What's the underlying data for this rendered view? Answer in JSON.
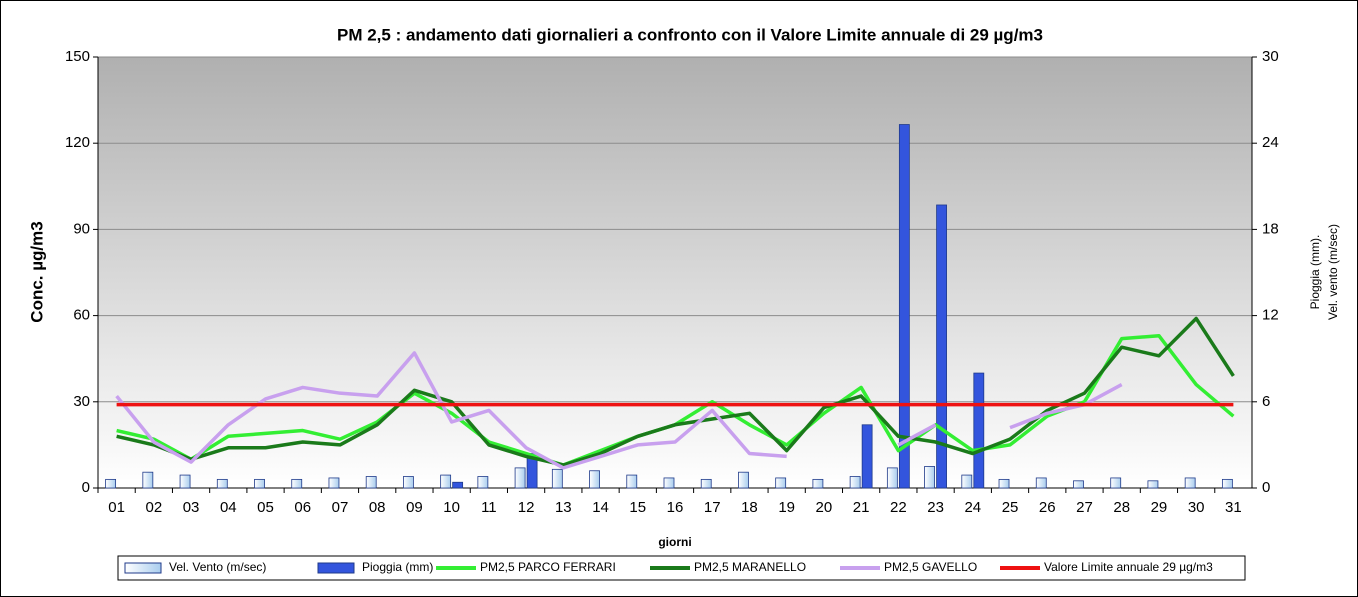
{
  "chart_data": {
    "type": "combo",
    "title": "PM 2,5 : andamento  dati giornalieri  a confronto con il Valore Limite annuale   di  29 µg/m3",
    "y_label": "Conc. µg/m3",
    "y2_label": [
      "Pioggia (mm).",
      "Vel. vento (m/sec)"
    ],
    "x_label": "giorni",
    "categories": [
      "01",
      "02",
      "03",
      "04",
      "05",
      "06",
      "07",
      "08",
      "09",
      "10",
      "11",
      "12",
      "13",
      "14",
      "15",
      "16",
      "17",
      "18",
      "19",
      "20",
      "21",
      "22",
      "23",
      "24",
      "25",
      "26",
      "27",
      "28",
      "29",
      "30",
      "31"
    ],
    "ylim": [
      0,
      150
    ],
    "yticks": [
      0,
      30,
      60,
      90,
      120,
      150
    ],
    "y2lim": [
      0,
      30
    ],
    "y2ticks": [
      0,
      6,
      12,
      18,
      24,
      30
    ],
    "grid": true,
    "legend": "bottom",
    "series": [
      {
        "name": "Vel. Vento (m/sec)",
        "type": "bar",
        "axis": "y2",
        "color": "#cfe6f7",
        "values": [
          0.6,
          1.1,
          0.9,
          0.6,
          0.6,
          0.6,
          0.7,
          0.8,
          0.8,
          0.9,
          0.8,
          1.4,
          1.3,
          1.2,
          0.9,
          0.7,
          0.6,
          1.1,
          0.7,
          0.6,
          0.8,
          1.4,
          1.5,
          0.9,
          0.6,
          0.7,
          0.5,
          0.7,
          0.5,
          0.7,
          0.6
        ]
      },
      {
        "name": "Pioggia (mm)",
        "type": "bar",
        "axis": "y2",
        "color": "#3355dd",
        "values": [
          0,
          0,
          0,
          0,
          0,
          0,
          0,
          0,
          0,
          0.4,
          0,
          2.4,
          0,
          0,
          0,
          0,
          0,
          0,
          0,
          0,
          4.4,
          25.3,
          19.7,
          8.0,
          0,
          0,
          0,
          0,
          0,
          0,
          0
        ]
      },
      {
        "name": "PM2,5 PARCO FERRARI",
        "type": "line",
        "color": "#33ee33",
        "values": [
          20,
          17,
          10,
          18,
          19,
          20,
          17,
          23,
          33,
          26,
          16,
          12,
          8,
          13,
          18,
          22,
          30,
          22,
          15,
          26,
          35,
          13,
          22,
          13,
          15,
          25,
          30,
          52,
          53,
          36,
          25
        ]
      },
      {
        "name": "PM2,5 MARANELLO",
        "type": "line",
        "color": "#1a7a1a",
        "values": [
          18,
          15,
          10,
          14,
          14,
          16,
          15,
          22,
          34,
          30,
          15,
          11,
          8,
          12,
          18,
          22,
          24,
          26,
          13,
          28,
          32,
          18,
          16,
          12,
          17,
          27,
          33,
          49,
          46,
          59,
          39
        ]
      },
      {
        "name": "PM2,5 GAVELLO",
        "type": "line",
        "color": "#c8a0ee",
        "values": [
          32,
          16,
          9,
          22,
          31,
          35,
          33,
          32,
          47,
          23,
          27,
          14,
          7,
          11,
          15,
          16,
          27,
          12,
          11,
          null,
          null,
          15,
          22,
          null,
          21,
          26,
          29,
          36,
          null,
          null,
          null
        ]
      },
      {
        "name": "Valore Limite annuale 29 µg/m3",
        "type": "line",
        "color": "#ee1111",
        "values": [
          29,
          29,
          29,
          29,
          29,
          29,
          29,
          29,
          29,
          29,
          29,
          29,
          29,
          29,
          29,
          29,
          29,
          29,
          29,
          29,
          29,
          29,
          29,
          29,
          29,
          29,
          29,
          29,
          29,
          29,
          29
        ]
      }
    ]
  }
}
